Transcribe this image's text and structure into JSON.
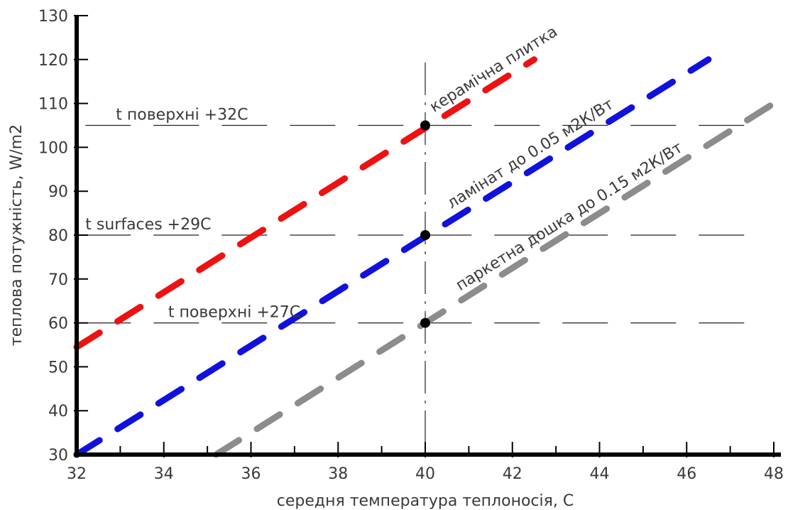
{
  "chart_data": {
    "type": "line",
    "title": "",
    "xlabel": "середня температура теплоносія, С",
    "ylabel": "теплова потужність, W/m2",
    "xlim": [
      32,
      48
    ],
    "ylim": [
      30,
      130
    ],
    "x_ticks": [
      32,
      34,
      36,
      38,
      40,
      42,
      44,
      46,
      48
    ],
    "y_ticks": [
      30,
      40,
      50,
      60,
      70,
      80,
      90,
      100,
      110,
      120,
      130
    ],
    "grid": false,
    "legend": "none",
    "series": [
      {
        "name": "керамічна плитка",
        "color": "#ee1111",
        "x": [
          32,
          42.5
        ],
        "y": [
          54.5,
          120
        ]
      },
      {
        "name": "ламінат до 0.05 м2К/Вт",
        "color": "#1111dd",
        "x": [
          32,
          46.5
        ],
        "y": [
          30,
          120
        ]
      },
      {
        "name": "паркетна дошка до 0.15 м2К/Вт",
        "color": "#8c8c8c",
        "x": [
          35.2,
          48
        ],
        "y": [
          30,
          110
        ]
      }
    ],
    "reference_lines": [
      {
        "label": "t поверхні +32С",
        "y": 105
      },
      {
        "label": "t surfaces +29С",
        "y": 80
      },
      {
        "label": "t поверхні +27С",
        "y": 60
      }
    ],
    "vertical_reference": {
      "x": 40
    },
    "marker_points": [
      {
        "x": 40,
        "y": 105
      },
      {
        "x": 40,
        "y": 80
      },
      {
        "x": 40,
        "y": 60
      }
    ]
  }
}
